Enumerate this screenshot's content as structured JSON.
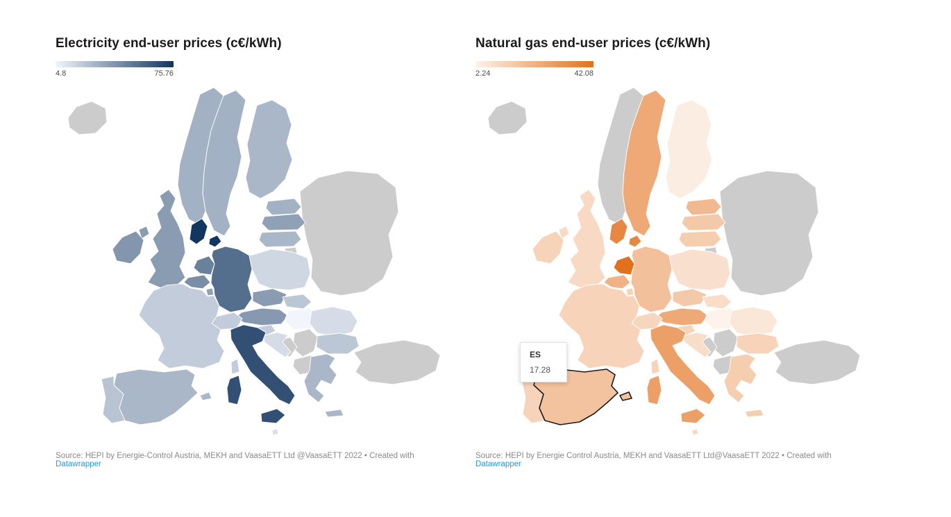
{
  "accent": {
    "link_color": "#1e9cd8",
    "no_data_color": "#cccccc",
    "background": "#ffffff"
  },
  "chart_data": [
    {
      "type": "choropleth",
      "region": "Europe",
      "title": "Electricity end-user prices (c€/kWh)",
      "unit": "c€/kWh",
      "legend": {
        "min_label": "4.8",
        "max_label": "75.76"
      },
      "scale": {
        "min": 4.8,
        "max": 75.76,
        "start_color": "#f2f5fb",
        "end_color": "#12365f"
      },
      "values": {
        "IS": null,
        "NO": 30,
        "SE": 30,
        "FI": 28,
        "DK": 75.76,
        "EE": 30,
        "LV": 36,
        "LT": 28,
        "GB": 38,
        "IE": 40,
        "NL": 48,
        "BE": 43,
        "LU": 36,
        "DE": 55,
        "PL": 16,
        "CZ": 38,
        "SK": 22,
        "AT": 39,
        "HU": 4.8,
        "CH": 20,
        "SI": 20,
        "HR": 14,
        "FR": 20,
        "ES": 28,
        "PT": 23,
        "IT": 66,
        "RO": 14,
        "BG": 22,
        "GR": 28,
        "MT": 13,
        "EASTERN_NODATA": null,
        "TR": null,
        "RS": null,
        "BA": null,
        "AL_MK": null,
        "KALININGRAD": null
      },
      "source_prefix": "Source: HEPI by Energie-Control Austria, MEKH and VaasaETT Ltd @VaasaETT 2022 • Created with ",
      "source_link_label": "Datawrapper"
    },
    {
      "type": "choropleth",
      "region": "Europe",
      "title": "Natural gas end-user prices (c€/kWh)",
      "unit": "c€/kWh",
      "legend": {
        "min_label": "2.24",
        "max_label": "42.08"
      },
      "scale": {
        "min": 2.24,
        "max": 42.08,
        "start_color": "#fdf3ec",
        "end_color": "#e2711d"
      },
      "values": {
        "IS": null,
        "NO": null,
        "SE": 25,
        "FI": 4,
        "DK": 35,
        "EE": 20,
        "LV": 15,
        "LT": 14,
        "GB": 10,
        "IE": 12,
        "NL": 42.08,
        "BE": 22,
        "LU": 12,
        "DE": 18,
        "PL": 8,
        "CZ": 15,
        "SK": 9,
        "AT": 25,
        "HU": 2.24,
        "CH": 11,
        "SI": 12,
        "HR": 9,
        "FR": 12,
        "ES": 17.28,
        "PT": 12,
        "IT": 28,
        "RO": 6,
        "BG": 12,
        "GR": 14,
        "MT": 10,
        "EASTERN_NODATA": null,
        "TR": null,
        "RS": null,
        "BA": null,
        "AL_MK": null,
        "KALININGRAD": null
      },
      "highlight_country": "ES",
      "tooltip": {
        "country_label": "ES",
        "value_label": "17.28"
      },
      "source_prefix": "Source: HEPI by Energie Control Austria, MEKH and VaasaETT Ltd@VaasaETT 2022 • Created with ",
      "source_link_label": "Datawrapper"
    }
  ]
}
